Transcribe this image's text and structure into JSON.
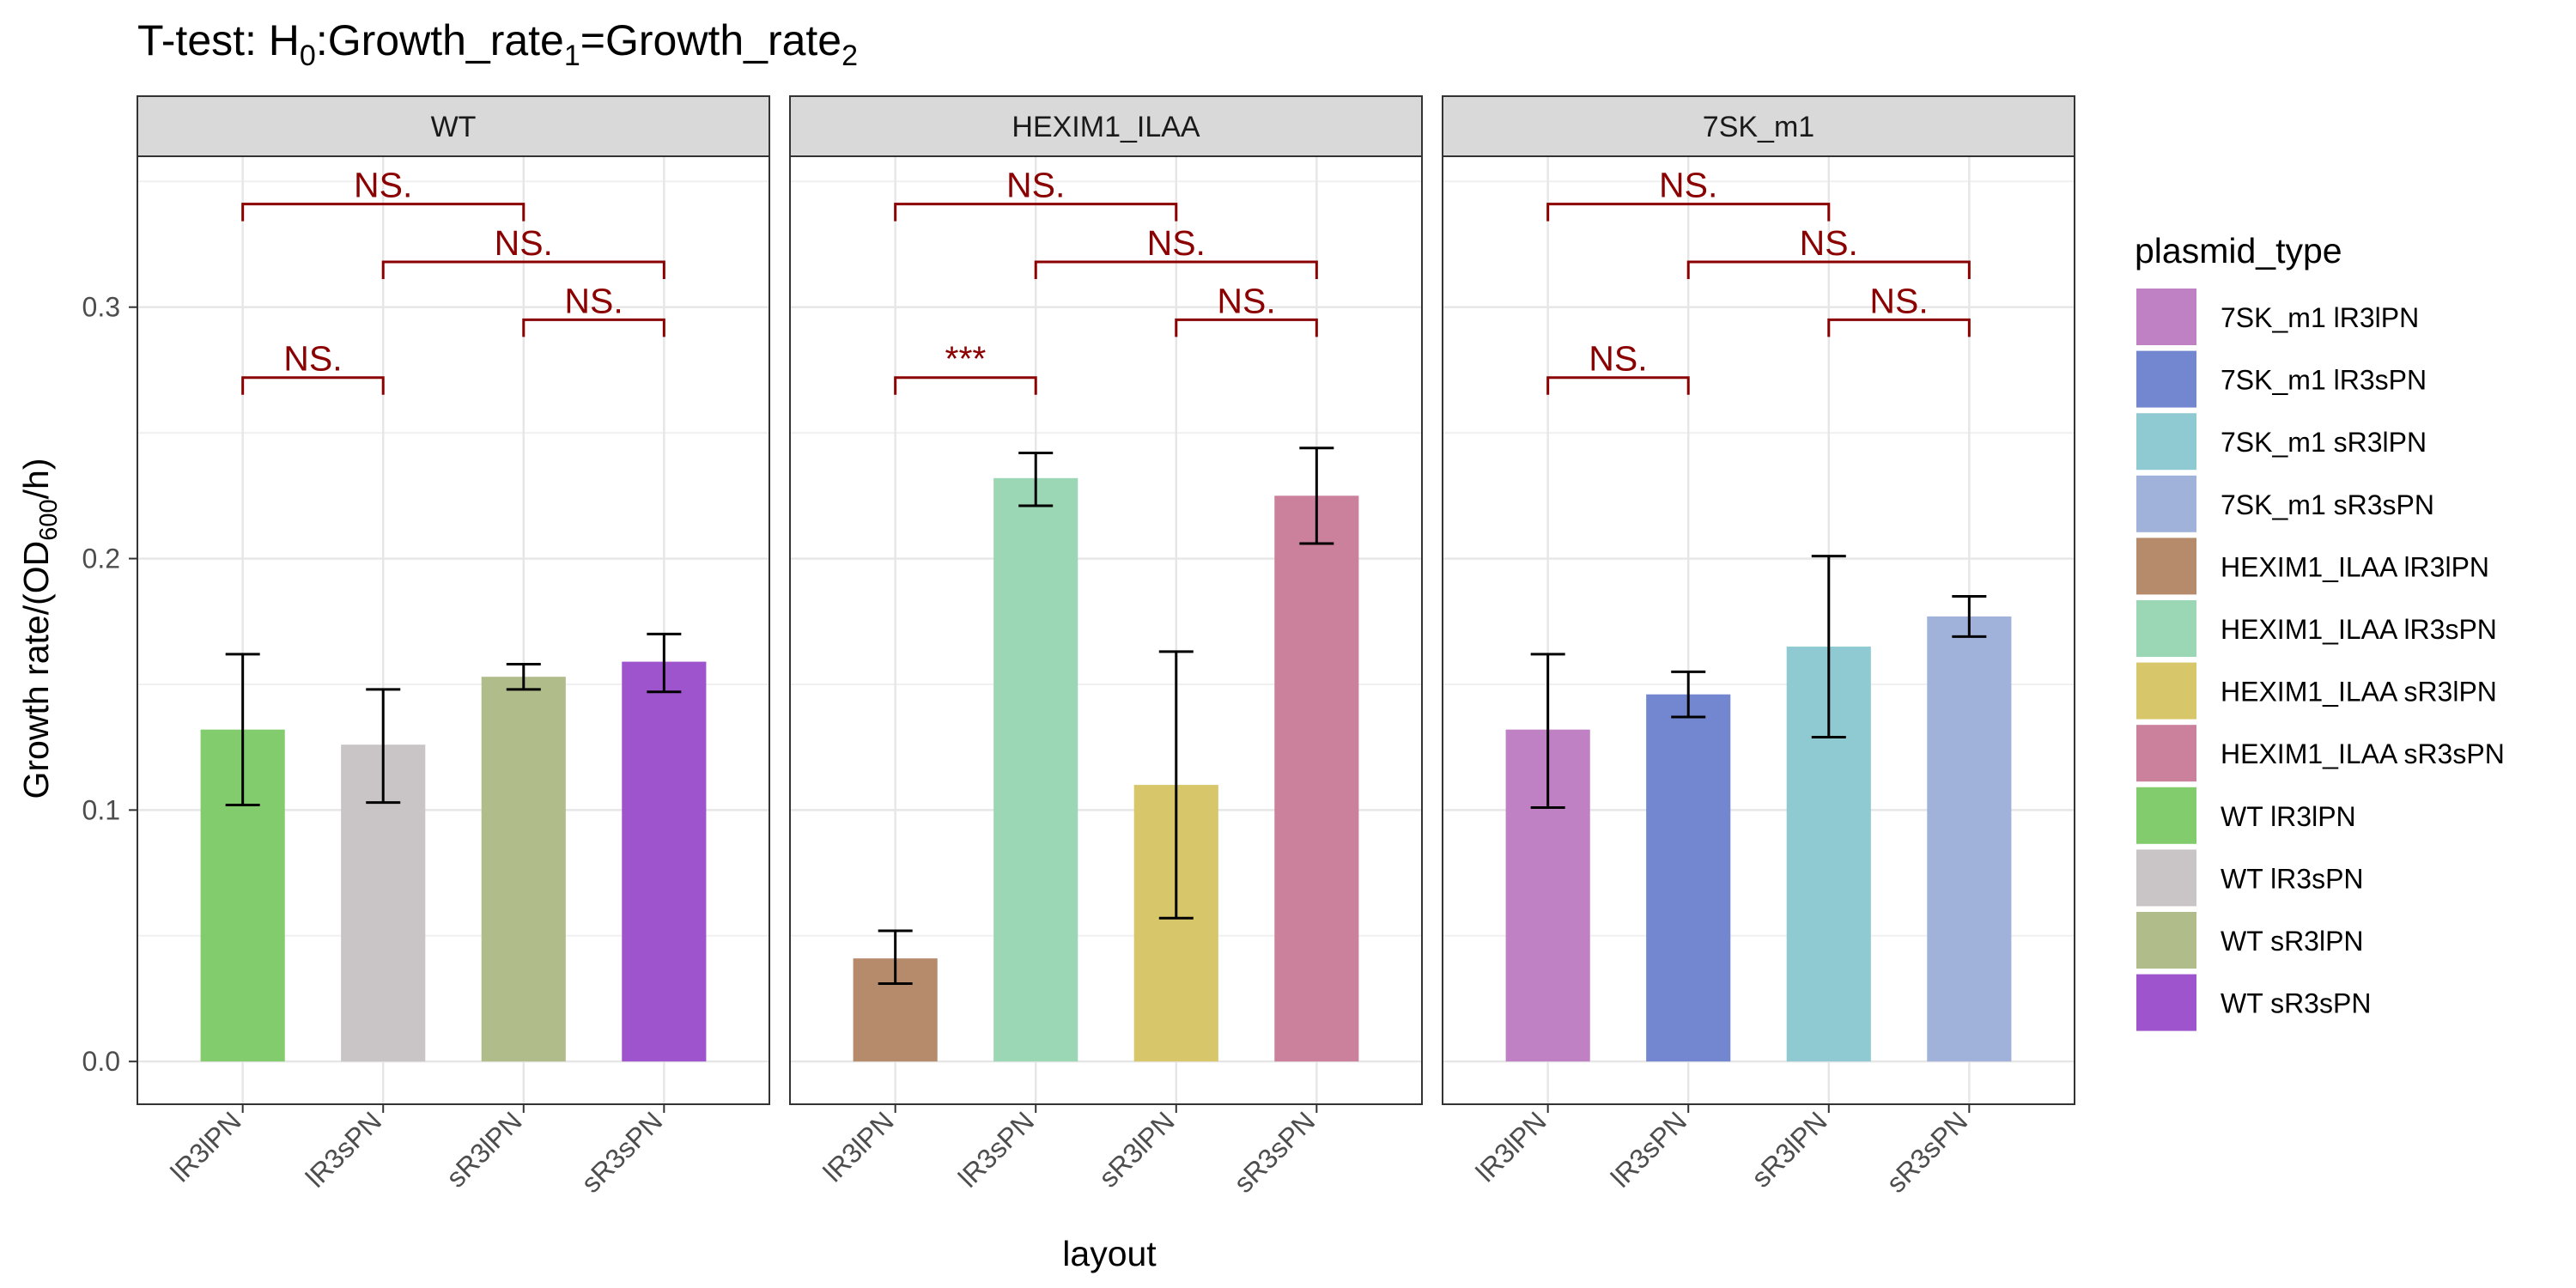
{
  "chart_data": {
    "type": "bar",
    "title": "T-test: H",
    "title_sub_h0": "0",
    "title_mid": ":Growth_rate",
    "title_sub_1": "1",
    "title_eq": "=Growth_rate",
    "title_sub_2": "2",
    "xlabel": "layout",
    "ylabel_main": "Growth rate/(OD",
    "ylabel_sub": "600",
    "ylabel_end": "/h)",
    "ylim": [
      -0.017,
      0.36
    ],
    "y_ticks": [
      0.0,
      0.1,
      0.2,
      0.3
    ],
    "y_tick_labels": [
      "0.0",
      "0.1",
      "0.2",
      "0.3"
    ],
    "grid": true,
    "categories": [
      "lR3lPN",
      "lR3sPN",
      "sR3lPN",
      "sR3sPN"
    ],
    "legend_title": "plasmid_type",
    "legend_position": "right",
    "legend": [
      {
        "label": "7SK_m1 lR3lPN",
        "color": "#bf80c4"
      },
      {
        "label": "7SK_m1 lR3sPN",
        "color": "#7386d0"
      },
      {
        "label": "7SK_m1 sR3lPN",
        "color": "#8fcad3"
      },
      {
        "label": "7SK_m1 sR3sPN",
        "color": "#a0b1da"
      },
      {
        "label": "HEXIM1_ILAA lR3lPN",
        "color": "#b68b6b"
      },
      {
        "label": "HEXIM1_ILAA lR3sPN",
        "color": "#9bd7b4"
      },
      {
        "label": "HEXIM1_ILAA sR3lPN",
        "color": "#d7c66a"
      },
      {
        "label": "HEXIM1_ILAA sR3sPN",
        "color": "#cb809b"
      },
      {
        "label": "WT lR3lPN",
        "color": "#82cc6e"
      },
      {
        "label": "WT lR3sPN",
        "color": "#c9c4c5"
      },
      {
        "label": "WT sR3lPN",
        "color": "#b0bd8b"
      },
      {
        "label": "WT sR3sPN",
        "color": "#9d54cc"
      }
    ],
    "panels": [
      {
        "label": "WT",
        "values": [
          0.132,
          0.126,
          0.153,
          0.159
        ],
        "err_low": [
          0.102,
          0.103,
          0.148,
          0.147
        ],
        "err_high": [
          0.162,
          0.148,
          0.158,
          0.17
        ],
        "colors": [
          "#82cc6e",
          "#c9c4c5",
          "#b0bd8b",
          "#9d54cc"
        ],
        "comparisons": [
          {
            "from": 0,
            "to": 2,
            "y": 0.341,
            "label": "NS."
          },
          {
            "from": 1,
            "to": 3,
            "y": 0.318,
            "label": "NS."
          },
          {
            "from": 2,
            "to": 3,
            "y": 0.295,
            "label": "NS."
          },
          {
            "from": 0,
            "to": 1,
            "y": 0.272,
            "label": "NS."
          }
        ]
      },
      {
        "label": "HEXIM1_ILAA",
        "values": [
          0.041,
          0.232,
          0.11,
          0.225
        ],
        "err_low": [
          0.031,
          0.221,
          0.057,
          0.206
        ],
        "err_high": [
          0.052,
          0.242,
          0.163,
          0.244
        ],
        "colors": [
          "#b68b6b",
          "#9bd7b4",
          "#d7c66a",
          "#cb809b"
        ],
        "comparisons": [
          {
            "from": 0,
            "to": 2,
            "y": 0.341,
            "label": "NS."
          },
          {
            "from": 1,
            "to": 3,
            "y": 0.318,
            "label": "NS."
          },
          {
            "from": 2,
            "to": 3,
            "y": 0.295,
            "label": "NS."
          },
          {
            "from": 0,
            "to": 1,
            "y": 0.272,
            "label": "***"
          }
        ]
      },
      {
        "label": "7SK_m1",
        "values": [
          0.132,
          0.146,
          0.165,
          0.177
        ],
        "err_low": [
          0.101,
          0.137,
          0.129,
          0.169
        ],
        "err_high": [
          0.162,
          0.155,
          0.201,
          0.185
        ],
        "colors": [
          "#bf80c4",
          "#7386d0",
          "#8fcad3",
          "#a0b1da"
        ],
        "comparisons": [
          {
            "from": 0,
            "to": 2,
            "y": 0.341,
            "label": "NS."
          },
          {
            "from": 1,
            "to": 3,
            "y": 0.318,
            "label": "NS."
          },
          {
            "from": 2,
            "to": 3,
            "y": 0.295,
            "label": "NS."
          },
          {
            "from": 0,
            "to": 1,
            "y": 0.272,
            "label": "NS."
          }
        ]
      }
    ]
  }
}
